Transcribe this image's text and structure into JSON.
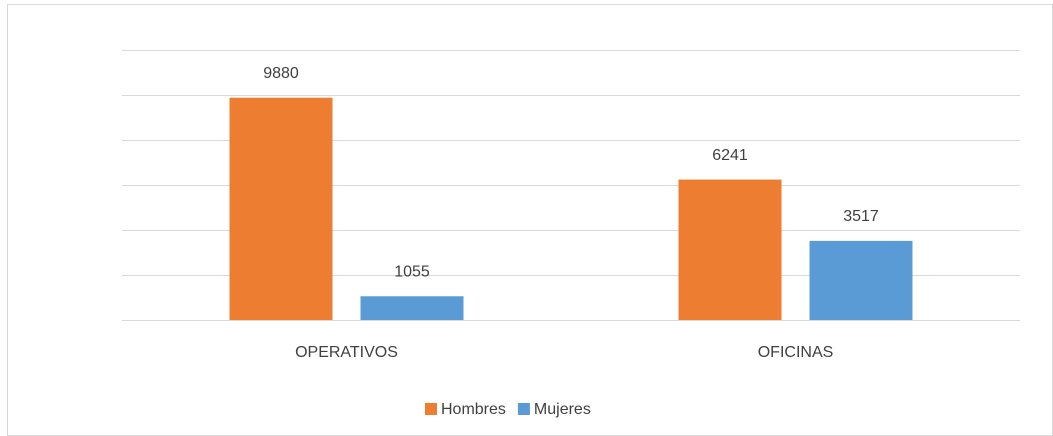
{
  "chart_data": {
    "type": "bar",
    "categories": [
      "OPERATIVOS",
      "OFICINAS"
    ],
    "series": [
      {
        "name": "Hombres",
        "color": "#ed7d31",
        "values": [
          9880,
          6241
        ]
      },
      {
        "name": "Mujeres",
        "color": "#5b9bd5",
        "values": [
          1055,
          3517
        ]
      }
    ],
    "ylim": [
      0,
      12000
    ],
    "yticks": [
      0,
      2000,
      4000,
      6000,
      8000,
      10000,
      12000
    ],
    "grid": true,
    "legend": "bottom"
  }
}
